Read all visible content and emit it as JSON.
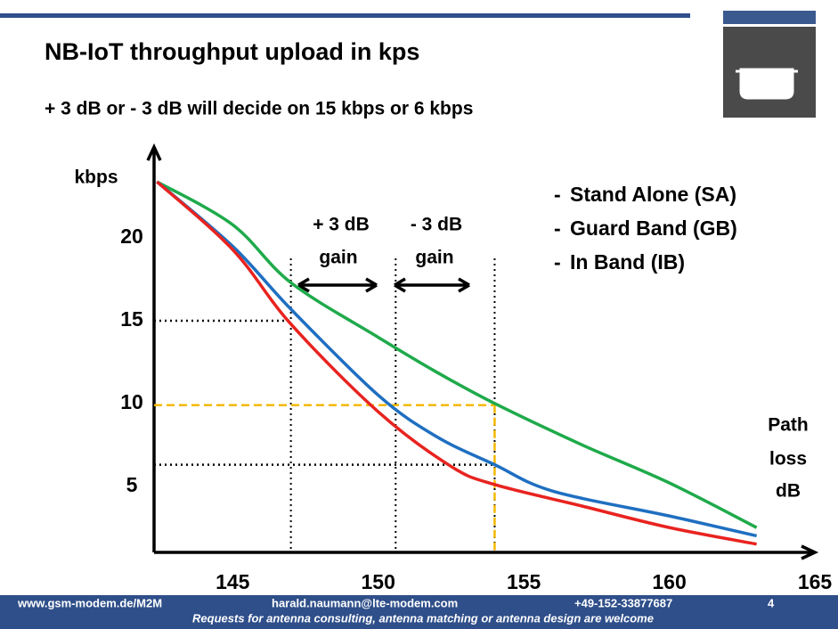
{
  "header": {
    "title": "NB-IoT throughput upload in kps",
    "subtitle": "+ 3 dB or - 3 dB will decide on 15 kbps or 6 kbps"
  },
  "chart_data": {
    "type": "line",
    "y_label": "kbps",
    "x_label": [
      "Path",
      "loss",
      "dB"
    ],
    "xlim": [
      142.3,
      165
    ],
    "xticks": [
      145,
      150,
      155,
      160,
      165
    ],
    "ylim": [
      1,
      25.5
    ],
    "yticks": [
      5,
      10,
      15,
      20
    ],
    "series": [
      {
        "name": "Stand Alone (SA)",
        "color": "#1faa4b",
        "x": [
          142.4,
          145,
          147,
          150,
          152,
          154,
          157,
          160,
          163
        ],
        "values": [
          23.4,
          20.8,
          17.3,
          14,
          11.9,
          10,
          7.5,
          5.2,
          2.5
        ]
      },
      {
        "name": "Guard Band (GB)",
        "color": "#1f6fc1",
        "x": [
          142.4,
          145,
          147,
          150,
          152,
          154,
          156,
          160,
          163
        ],
        "values": [
          23.4,
          19.5,
          15.7,
          10.5,
          8,
          6.3,
          4.7,
          3.2,
          2
        ]
      },
      {
        "name": "In Band (IB)",
        "color": "#e8231f",
        "x": [
          142.4,
          145,
          147,
          150,
          152.5,
          154,
          157,
          160,
          163
        ],
        "values": [
          23.4,
          19.3,
          14.8,
          9.5,
          6.2,
          5.1,
          3.8,
          2.5,
          1.5
        ]
      }
    ],
    "vlines": [
      147,
      150.6,
      154
    ],
    "hlines": [
      {
        "y": 15,
        "x": 147,
        "color": "#000000"
      },
      {
        "y": 9.9,
        "x": 154,
        "color": "#f5b800"
      },
      {
        "y": 6.3,
        "x": 154,
        "color": "#000000"
      }
    ],
    "annotations": [
      "+ 3 dB",
      "gain",
      "- 3 dB",
      "gain"
    ]
  },
  "footer": {
    "website": "www.gsm-modem.de/M2M",
    "email": "harald.naumann@lte-modem.com",
    "phone": "+49-152-33877687",
    "page": "4",
    "note": "Requests for antenna consulting, antenna matching or antenna design are welcome"
  }
}
